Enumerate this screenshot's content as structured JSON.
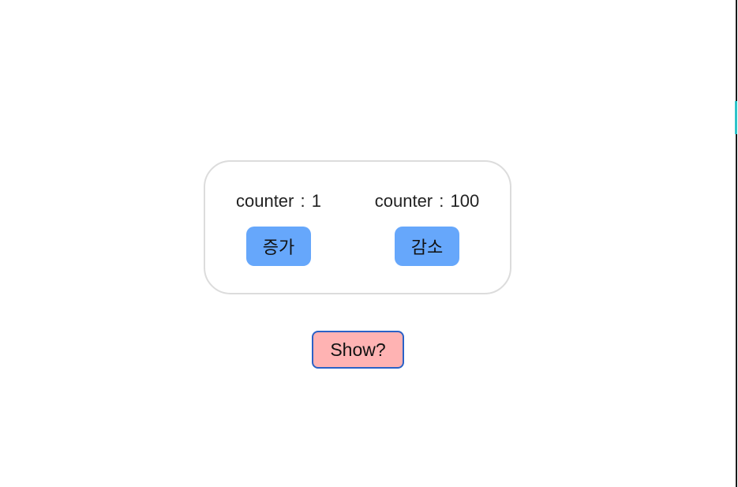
{
  "counters": [
    {
      "label": "counter",
      "separator": ":",
      "value": "1",
      "button_label": "증가"
    },
    {
      "label": "counter",
      "separator": ":",
      "value": "100",
      "button_label": "감소"
    }
  ],
  "toggle": {
    "label": "Show?"
  },
  "colors": {
    "action_button_bg": "#66a7fb",
    "toggle_button_bg": "#ffb3b3",
    "toggle_button_border": "#2a62c7",
    "card_border": "#dcdcdc",
    "edge_accent": "#2ec4c9"
  }
}
